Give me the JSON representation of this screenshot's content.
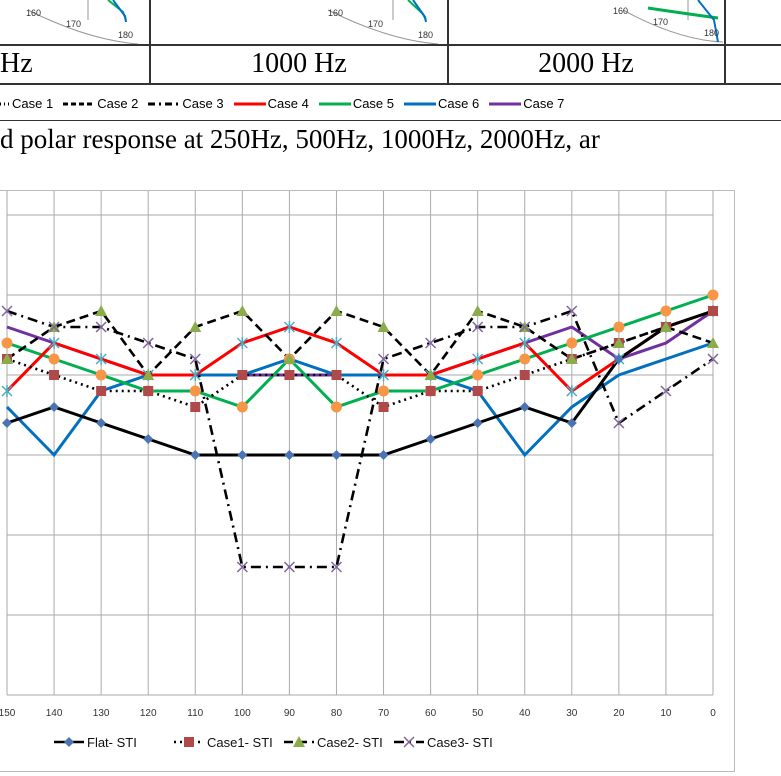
{
  "top_table": {
    "cells": [
      "Hz",
      "1000 Hz",
      "2000 Hz"
    ],
    "polar_angle_labels": [
      "160",
      "170",
      "180"
    ]
  },
  "top_legend": [
    "Case 1",
    "Case 2",
    "Case 3",
    "Case 4",
    "Case 5",
    "Case 6",
    "Case 7"
  ],
  "top_legend_colors": [
    "#000000",
    "#000000",
    "#000000",
    "#ff0000",
    "#00b050",
    "#0070c0",
    "#7030a0"
  ],
  "caption": "d polar response at 250Hz, 500Hz, 1000Hz, 2000Hz, ar",
  "chart_data": {
    "type": "line",
    "x": [
      150,
      140,
      130,
      120,
      110,
      100,
      90,
      80,
      70,
      60,
      50,
      40,
      30,
      20,
      10,
      0
    ],
    "xlabel": "",
    "ylabel": "",
    "yunits": "gridline levels (axis labels not visible)",
    "ylim": [
      0,
      6
    ],
    "grid": true,
    "legend_position": "bottom",
    "series": [
      {
        "name": "Flat- STI",
        "color": "#000000",
        "dash": "solid",
        "marker": "diamond",
        "marker_color": "#4a74b4",
        "in_legend": true,
        "values": [
          3.4,
          3.6,
          3.4,
          3.2,
          3.0,
          3.0,
          3.0,
          3.0,
          3.0,
          3.2,
          3.4,
          3.6,
          3.4,
          4.2,
          4.6,
          4.8
        ]
      },
      {
        "name": "Case1- STI",
        "color": "#000000",
        "dash": "dot",
        "marker": "square",
        "marker_color": "#b04a4a",
        "in_legend": true,
        "values": [
          4.2,
          4.0,
          3.8,
          3.8,
          3.6,
          4.0,
          4.0,
          4.0,
          3.6,
          3.8,
          3.8,
          4.0,
          4.2,
          4.4,
          4.6,
          4.8
        ]
      },
      {
        "name": "Case2- STI",
        "color": "#000000",
        "dash": "dash",
        "marker": "triangle",
        "marker_color": "#8aac4a",
        "in_legend": true,
        "values": [
          4.2,
          4.6,
          4.8,
          4.0,
          4.6,
          4.8,
          4.2,
          4.8,
          4.6,
          4.0,
          4.8,
          4.6,
          4.2,
          4.4,
          4.6,
          4.4
        ]
      },
      {
        "name": "Case3- STI",
        "color": "#000000",
        "dash": "dashdot",
        "marker": "x",
        "marker_color": "#8064a2",
        "in_legend": true,
        "values": [
          4.8,
          4.6,
          4.6,
          4.4,
          4.2,
          1.6,
          1.6,
          1.6,
          4.2,
          4.4,
          4.6,
          4.6,
          4.8,
          3.4,
          3.8,
          4.2
        ]
      },
      {
        "name": "",
        "color": "#ff0000",
        "dash": "solid",
        "marker": "star",
        "marker_color": "#4bacc6",
        "in_legend": false,
        "values": [
          3.8,
          4.4,
          4.2,
          4.0,
          4.0,
          4.4,
          4.6,
          4.4,
          4.0,
          4.0,
          4.2,
          4.4,
          3.8,
          4.2,
          4.6,
          4.8
        ]
      },
      {
        "name": "",
        "color": "#00b050",
        "dash": "solid",
        "marker": "circle",
        "marker_color": "#f79646",
        "in_legend": false,
        "values": [
          4.4,
          4.2,
          4.0,
          3.8,
          3.8,
          3.6,
          4.2,
          3.6,
          3.8,
          3.8,
          4.0,
          4.2,
          4.4,
          4.6,
          4.8,
          5.0
        ]
      },
      {
        "name": "",
        "color": "#0070c0",
        "dash": "solid",
        "marker": "none",
        "marker_color": "#0070c0",
        "in_legend": false,
        "values": [
          3.6,
          3.0,
          3.8,
          4.0,
          4.0,
          4.0,
          4.2,
          4.0,
          4.0,
          4.0,
          3.8,
          3.0,
          3.6,
          4.0,
          4.2,
          4.4
        ]
      },
      {
        "name": "",
        "color": "#7030a0",
        "dash": "solid",
        "marker": "none",
        "marker_color": "#7030a0",
        "in_legend": false,
        "values": [
          4.6,
          4.4,
          4.2,
          4.0,
          4.0,
          4.0,
          4.0,
          4.0,
          4.0,
          4.0,
          4.2,
          4.4,
          4.6,
          4.2,
          4.4,
          4.8
        ]
      }
    ]
  }
}
